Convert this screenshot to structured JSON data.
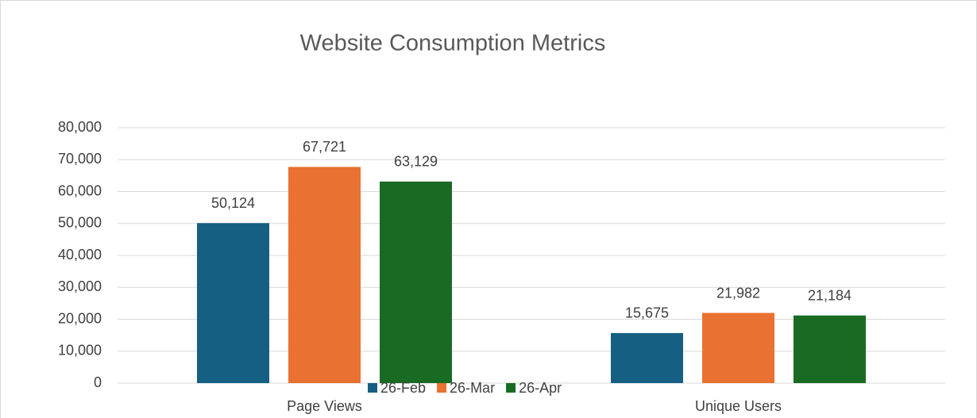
{
  "chart_data": {
    "type": "bar",
    "title": "Website Consumption Metrics",
    "categories": [
      "Page Views",
      "Unique Users"
    ],
    "series": [
      {
        "name": "26-Feb",
        "color": "#156082",
        "values": [
          50124,
          15675
        ],
        "value_labels": [
          "50,124",
          "15,675"
        ]
      },
      {
        "name": "26-Mar",
        "color": "#e97132",
        "values": [
          67721,
          21982
        ],
        "value_labels": [
          "67,721",
          "21,982"
        ]
      },
      {
        "name": "26-Apr",
        "color": "#196b24",
        "values": [
          63129,
          21184
        ],
        "value_labels": [
          "63,129",
          "21,184"
        ]
      }
    ],
    "ylim": [
      0,
      80000
    ],
    "yticks": [
      0,
      {
        "value": 10000,
        "label": "10,000"
      },
      {
        "value": 20000,
        "label": "20,000"
      },
      {
        "value": 30000,
        "label": "30,000"
      },
      {
        "value": 40000,
        "label": "40,000"
      },
      {
        "value": 50000,
        "label": "50,000"
      },
      {
        "value": 60000,
        "label": "60,000"
      },
      {
        "value": 70000,
        "label": "70,000"
      },
      {
        "value": 80000,
        "label": "80,000"
      }
    ],
    "grid": true,
    "legend": "bottom"
  }
}
